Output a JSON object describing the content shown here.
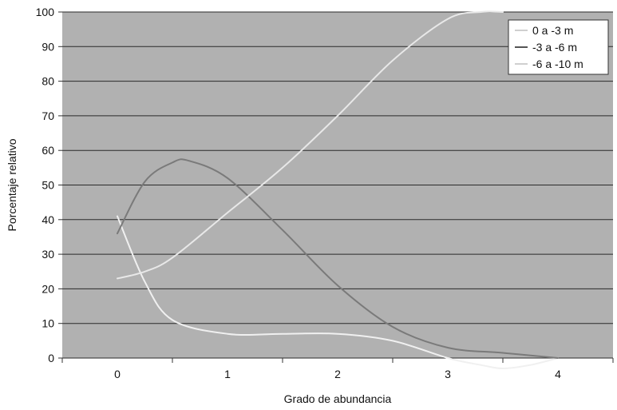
{
  "chart_data": {
    "type": "line",
    "title": "",
    "xlabel": "Grado de abundancia",
    "ylabel": "Porcentaje relativo",
    "ylim": [
      0,
      100
    ],
    "yticks": [
      0,
      10,
      20,
      30,
      40,
      50,
      60,
      70,
      80,
      90,
      100
    ],
    "xlim": [
      -0.5,
      4.5
    ],
    "xticks": [
      0,
      1,
      2,
      3,
      4
    ],
    "grid": true,
    "legend_position": "top-right",
    "series": [
      {
        "name": "0 a -3 m",
        "color": "#f0f0f0",
        "x": [
          0,
          0.25,
          0.5,
          1,
          1.5,
          2,
          2.5,
          3,
          3.3,
          3.5,
          3.75,
          4
        ],
        "y": [
          41,
          22,
          11,
          7,
          7,
          7,
          5,
          0,
          -2,
          -3,
          -2,
          0
        ]
      },
      {
        "name": "-3 a -6 m",
        "color": "#7a7a7a",
        "x": [
          0,
          0.25,
          0.5,
          0.65,
          1,
          1.5,
          2,
          2.5,
          3,
          3.5,
          4
        ],
        "y": [
          36,
          51,
          56.5,
          57,
          52,
          37,
          21,
          9,
          3,
          1.5,
          0
        ]
      },
      {
        "name": "-6 a -10 m",
        "color": "#e8e8e8",
        "x": [
          0,
          0.25,
          0.5,
          1,
          1.5,
          2,
          2.5,
          3,
          3.3,
          3.5
        ],
        "y": [
          23,
          25,
          29,
          42,
          55,
          70,
          86,
          98,
          101,
          101
        ]
      }
    ]
  }
}
